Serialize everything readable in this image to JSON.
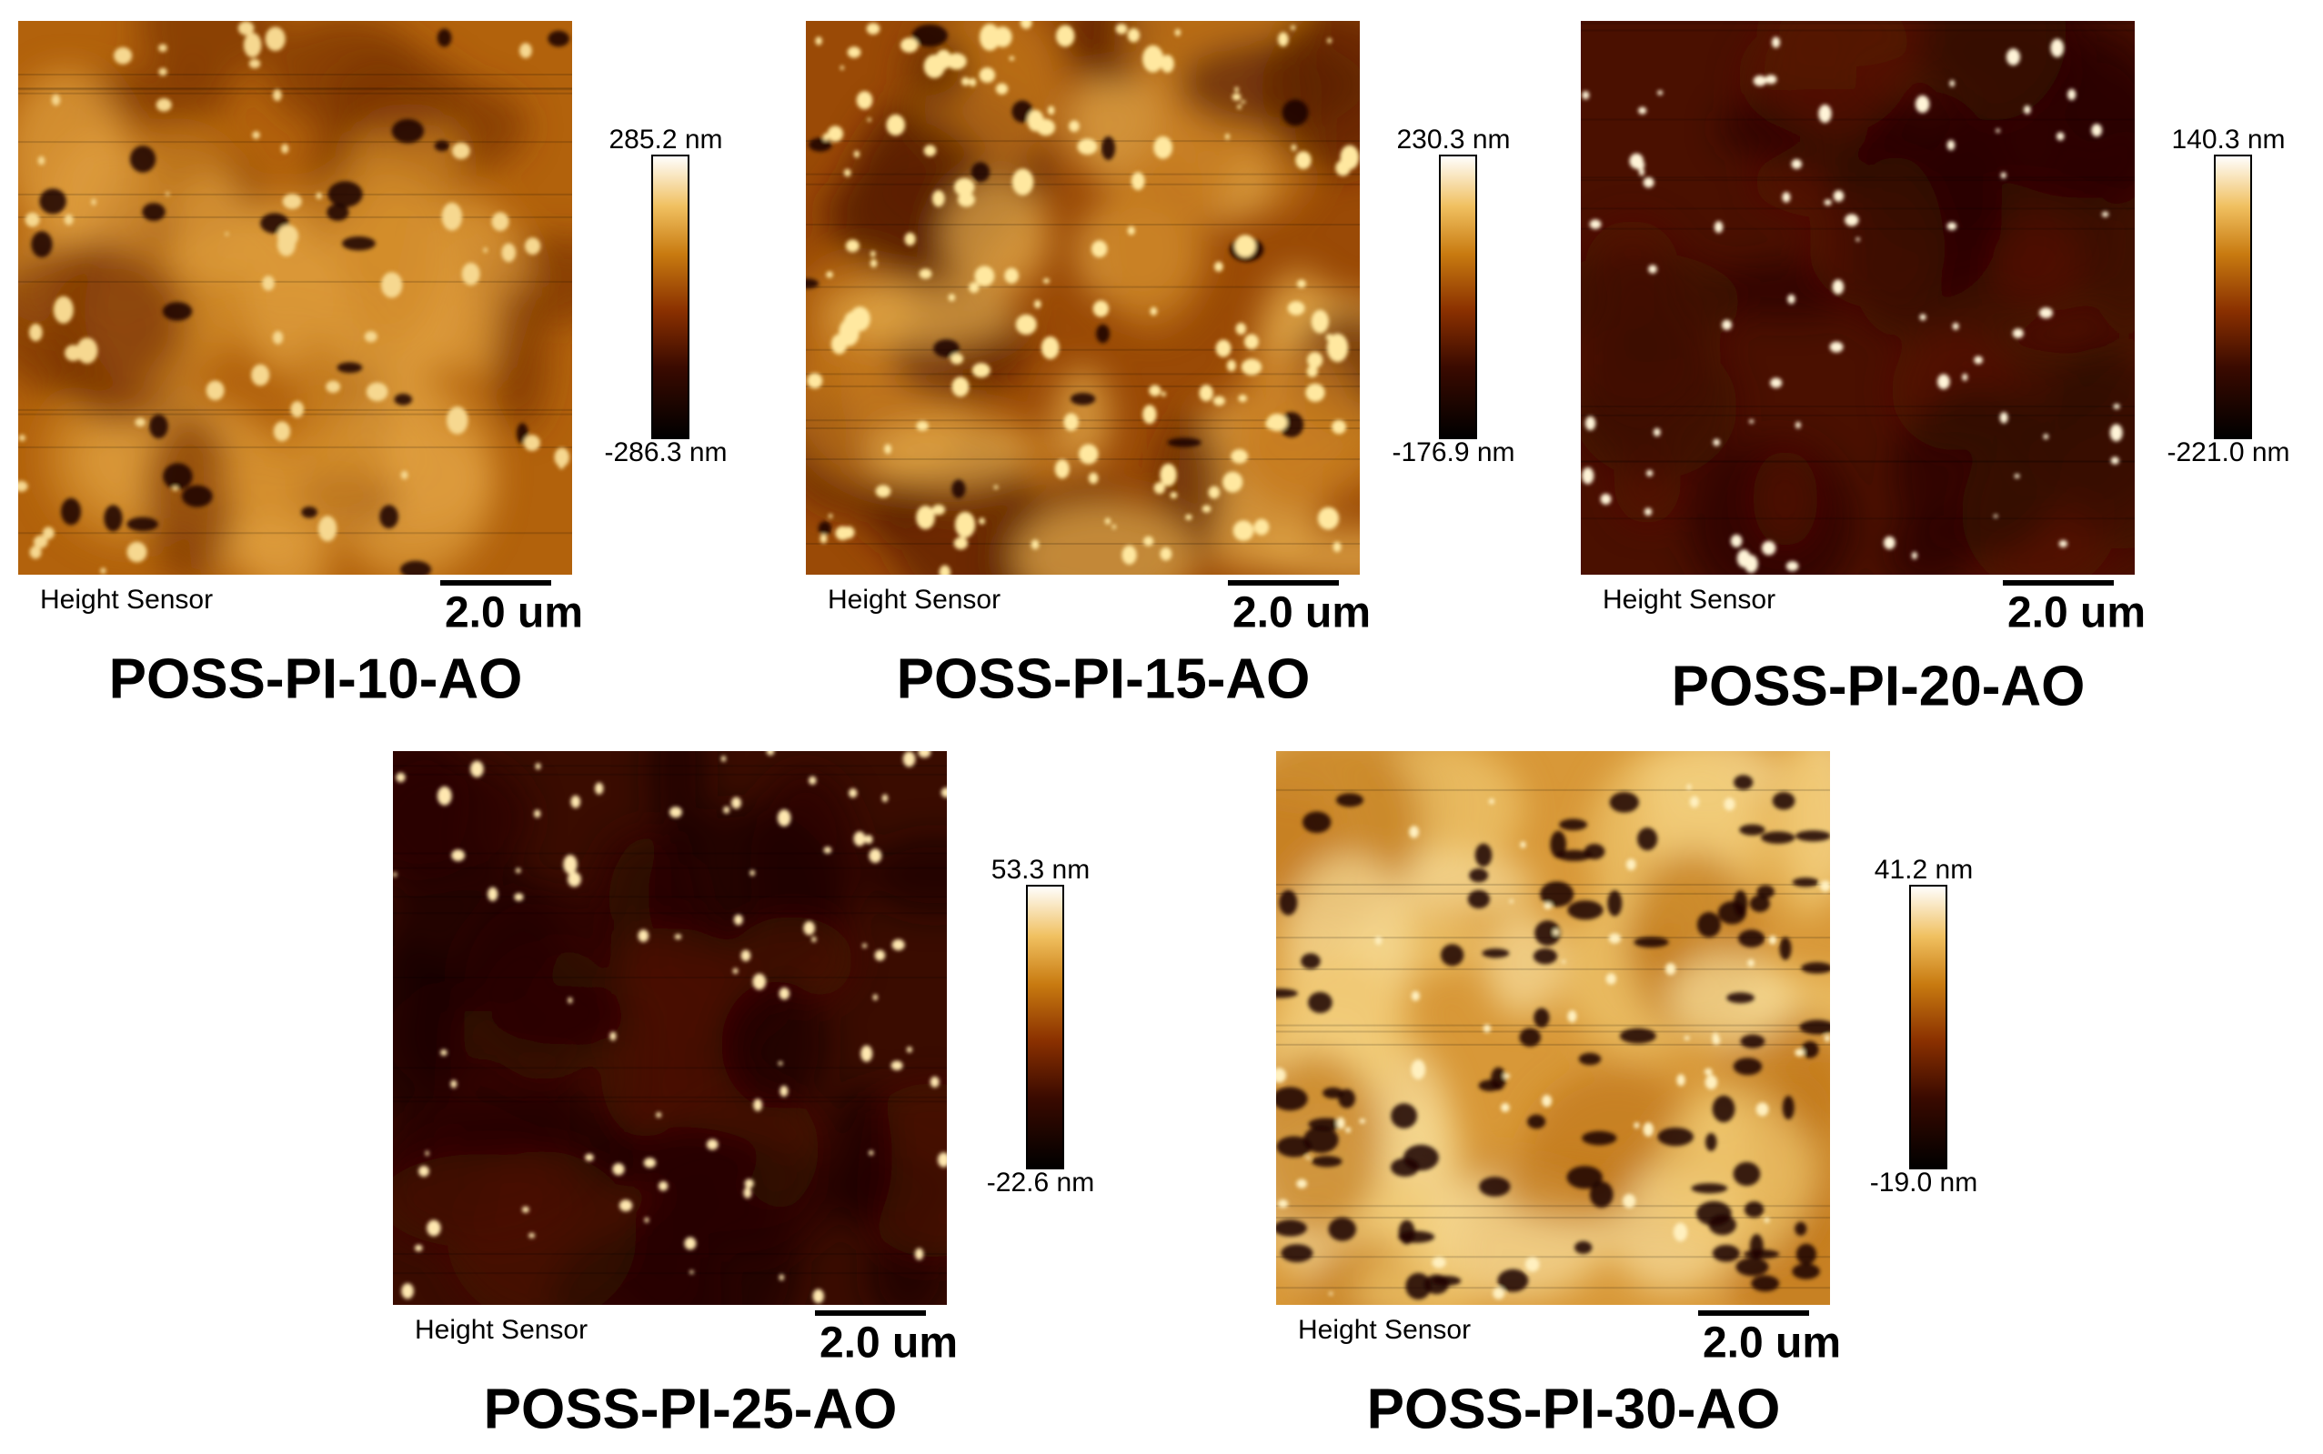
{
  "panels": [
    {
      "label": "POSS-PI-10-AO",
      "scale_max": "285.2 nm",
      "scale_min": "-286.3 nm",
      "sensor": "Height Sensor",
      "scale_bar": "2.0 um"
    },
    {
      "label": "POSS-PI-15-AO",
      "scale_max": "230.3 nm",
      "scale_min": "-176.9 nm",
      "sensor": "Height Sensor",
      "scale_bar": "2.0 um"
    },
    {
      "label": "POSS-PI-20-AO",
      "scale_max": "140.3 nm",
      "scale_min": "-221.0 nm",
      "sensor": "Height Sensor",
      "scale_bar": "2.0 um"
    },
    {
      "label": "POSS-PI-25-AO",
      "scale_max": "53.3 nm",
      "scale_min": "-22.6 nm",
      "sensor": "Height Sensor",
      "scale_bar": "2.0 um"
    },
    {
      "label": "POSS-PI-30-AO",
      "scale_max": "41.2 nm",
      "scale_min": "-19.0 nm",
      "sensor": "Height Sensor",
      "scale_bar": "2.0 um"
    }
  ]
}
